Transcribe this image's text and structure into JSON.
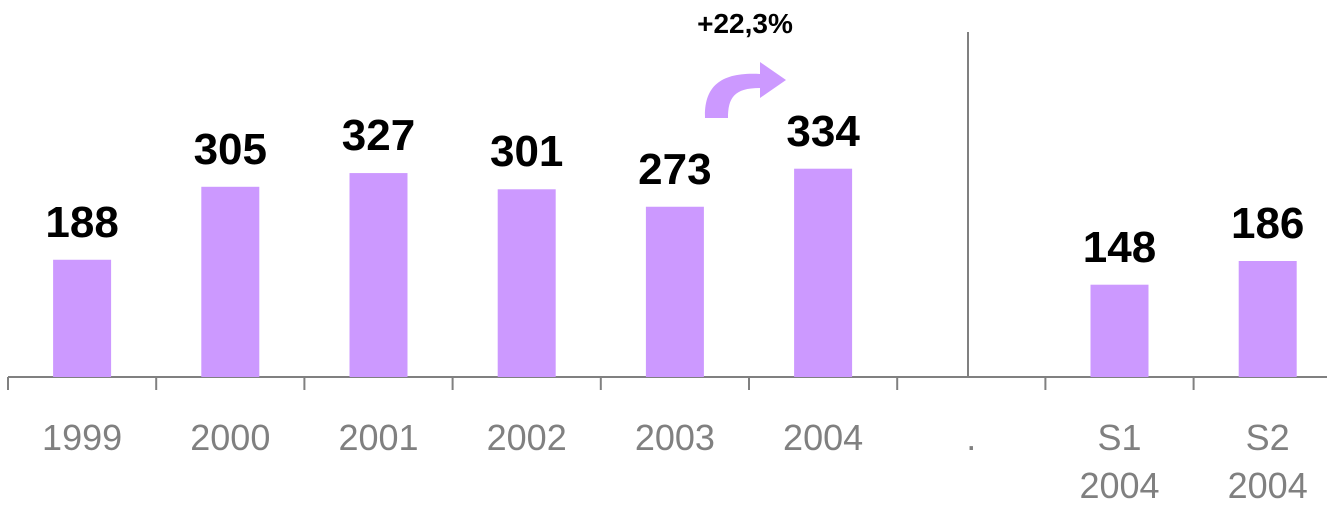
{
  "chart_data": {
    "type": "bar",
    "categories": [
      "1999",
      "2000",
      "2001",
      "2002",
      "2003",
      "2004",
      ".",
      "S1 2004",
      "S2 2004"
    ],
    "values": [
      188,
      305,
      327,
      301,
      273,
      334,
      null,
      148,
      186
    ],
    "color": "#cc99ff",
    "ylim": [
      0,
      550
    ],
    "annotation": "+22,3%"
  }
}
